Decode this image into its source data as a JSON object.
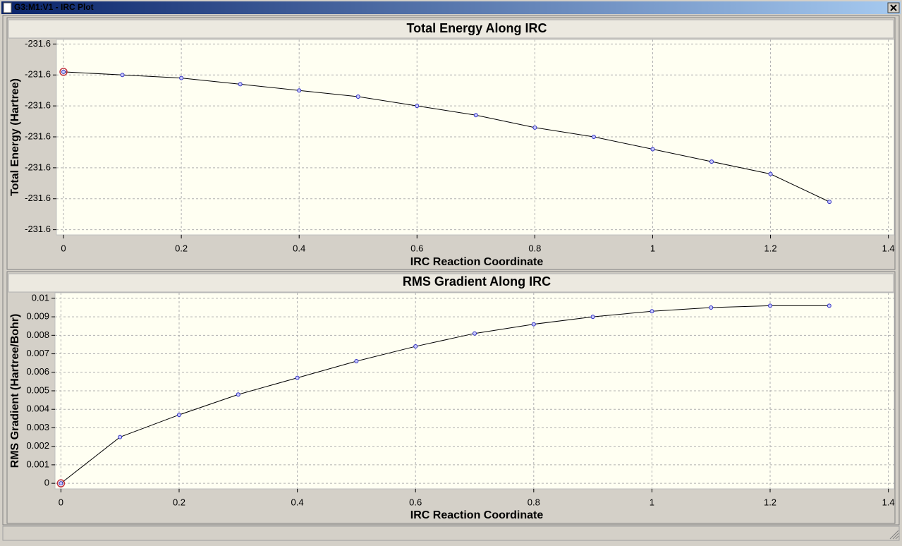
{
  "window_title": "G3:M1:V1 - IRC Plot",
  "chart_data": [
    {
      "type": "line",
      "title": "Total Energy Along IRC",
      "x_label": "IRC Reaction Coordinate",
      "y_label": "Total Energy (Hartree)",
      "x": [
        0,
        0.1,
        0.2,
        0.3,
        0.4,
        0.5,
        0.6,
        0.7,
        0.8,
        0.9,
        1,
        1.1,
        1.2,
        1.3
      ],
      "values": [
        -231.5949,
        -231.595,
        -231.5951,
        -231.5953,
        -231.5955,
        -231.5957,
        -231.596,
        -231.5963,
        -231.5967,
        -231.597,
        -231.5974,
        -231.5978,
        -231.5982,
        -231.5991
      ],
      "color": "#000000",
      "marker_color": "#3030c0",
      "highlight_color": "#c03040",
      "highlight_index": 0,
      "xlim": [
        -0.012,
        1.41
      ],
      "xticks": [
        0,
        0.2,
        0.4,
        0.6,
        0.8,
        1,
        1.2,
        1.4
      ],
      "ylim": [
        -231.6001,
        -231.5939
      ],
      "yticks": [
        {
          "value": -231.594,
          "label": "-231.6"
        },
        {
          "value": -231.595,
          "label": "-231.6"
        },
        {
          "value": -231.596,
          "label": "-231.6"
        },
        {
          "value": -231.597,
          "label": "-231.6"
        },
        {
          "value": -231.598,
          "label": "-231.6"
        },
        {
          "value": -231.599,
          "label": "-231.6"
        },
        {
          "value": -231.6,
          "label": "-231.6"
        }
      ],
      "grid": true
    },
    {
      "type": "line",
      "title": "RMS Gradient Along IRC",
      "x_label": "IRC Reaction Coordinate",
      "y_label": "RMS Gradient (Hartree/Bohr)",
      "x": [
        0,
        0.1,
        0.2,
        0.3,
        0.4,
        0.5,
        0.6,
        0.7,
        0.8,
        0.9,
        1,
        1.1,
        1.2,
        1.3
      ],
      "values": [
        0,
        0.0025,
        0.0037,
        0.0048,
        0.0057,
        0.0066,
        0.0074,
        0.0081,
        0.0086,
        0.009,
        0.0093,
        0.0095,
        0.0096,
        0.0096
      ],
      "color": "#000000",
      "marker_color": "#3030c0",
      "highlight_color": "#c03040",
      "highlight_index": 0,
      "xlim": [
        -0.01,
        1.41
      ],
      "xticks": [
        0,
        0.2,
        0.4,
        0.6,
        0.8,
        1,
        1.2,
        1.4
      ],
      "ylim": [
        -0.0003,
        0.0103
      ],
      "yticks": [
        0,
        0.001,
        0.002,
        0.003,
        0.004,
        0.005,
        0.006,
        0.007,
        0.008,
        0.009,
        0.01
      ],
      "grid": true
    }
  ]
}
